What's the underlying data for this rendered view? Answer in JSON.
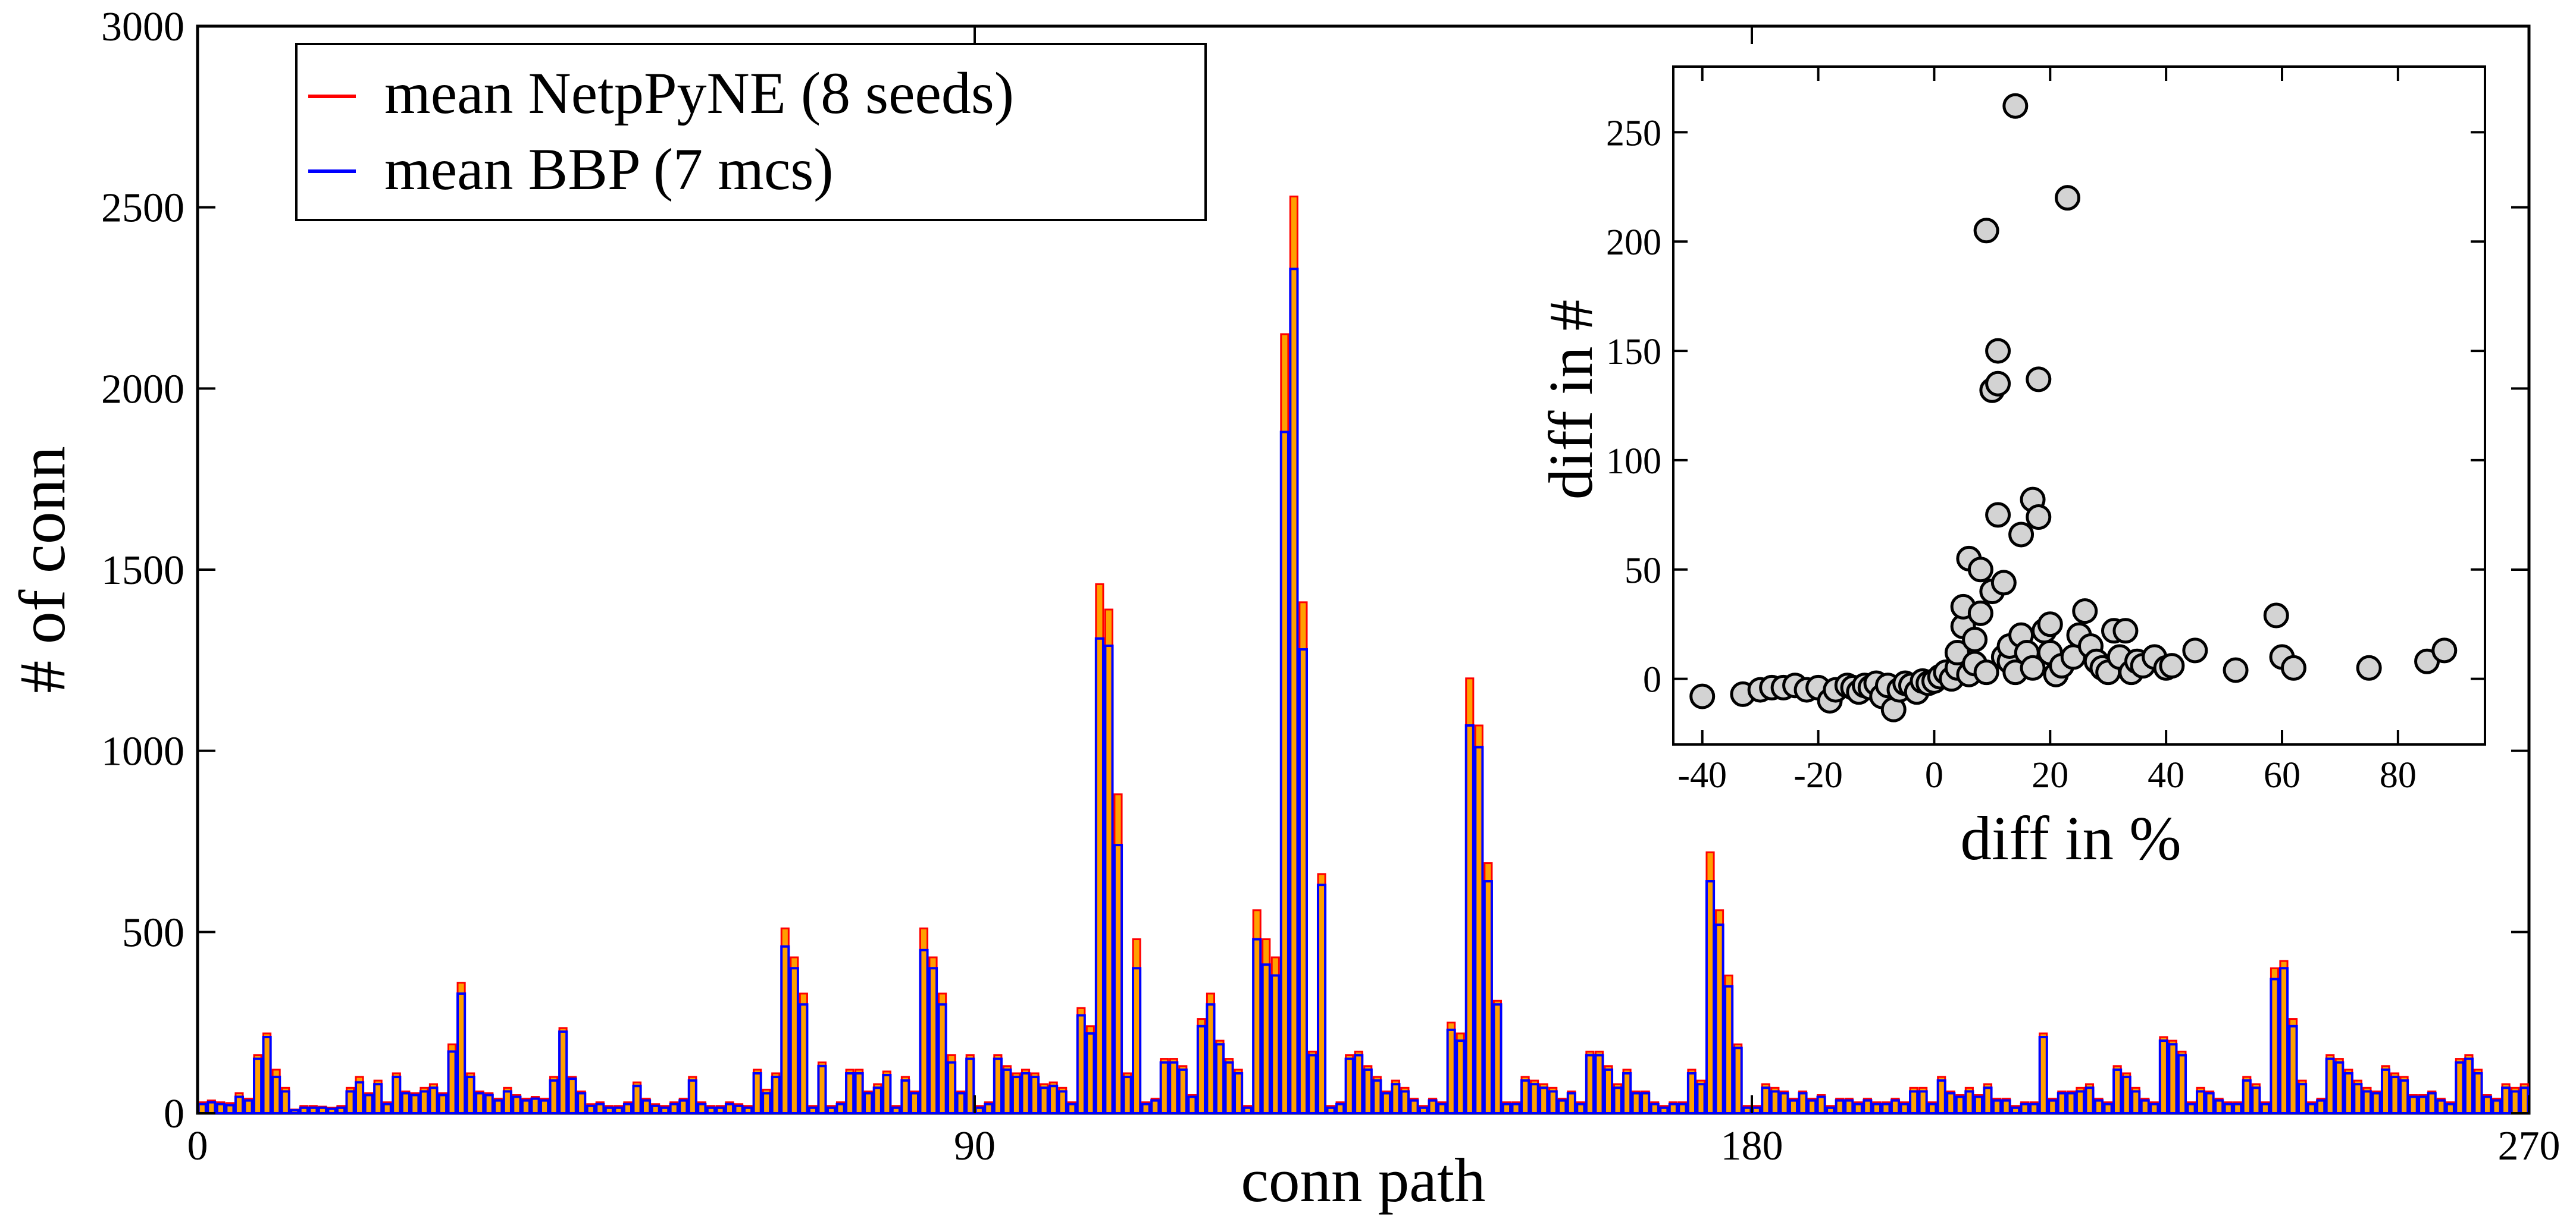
{
  "chart_data": [
    {
      "type": "bar",
      "xlabel": "conn path",
      "ylabel": "# of conn",
      "xlim": [
        0,
        270
      ],
      "ylim": [
        0,
        3000
      ],
      "x_ticks": [
        0,
        90,
        180,
        270
      ],
      "y_ticks": [
        0,
        500,
        1000,
        1500,
        2000,
        2500,
        3000
      ],
      "legend": {
        "placement": "top-left"
      },
      "grid": false,
      "series": [
        {
          "name": "mean NetpPyNE (8 seeds)",
          "color": "#ff0000",
          "fill": "#ffa000",
          "values": [
            30,
            35,
            30,
            28,
            55,
            40,
            160,
            220,
            120,
            70,
            10,
            20,
            20,
            18,
            15,
            20,
            70,
            100,
            55,
            90,
            30,
            110,
            60,
            55,
            70,
            80,
            55,
            190,
            360,
            110,
            60,
            55,
            40,
            70,
            50,
            40,
            45,
            40,
            100,
            235,
            100,
            60,
            25,
            30,
            20,
            20,
            30,
            85,
            40,
            25,
            20,
            30,
            40,
            100,
            30,
            20,
            20,
            30,
            25,
            20,
            120,
            65,
            110,
            510,
            430,
            330,
            20,
            140,
            20,
            30,
            120,
            120,
            60,
            80,
            115,
            20,
            100,
            60,
            510,
            430,
            330,
            160,
            60,
            160,
            20,
            30,
            160,
            130,
            110,
            120,
            110,
            80,
            85,
            70,
            30,
            290,
            240,
            1460,
            1390,
            880,
            110,
            480,
            30,
            40,
            150,
            150,
            130,
            50,
            260,
            330,
            200,
            150,
            120,
            20,
            560,
            480,
            430,
            2150,
            2530,
            1410,
            170,
            660,
            20,
            30,
            160,
            170,
            130,
            100,
            60,
            90,
            70,
            40,
            20,
            40,
            30,
            250,
            220,
            1200,
            1070,
            690,
            310,
            30,
            30,
            100,
            90,
            80,
            70,
            40,
            60,
            30,
            170,
            170,
            130,
            80,
            120,
            60,
            60,
            30,
            20,
            30,
            30,
            120,
            90,
            720,
            560,
            380,
            190,
            20,
            20,
            80,
            70,
            60,
            40,
            60,
            40,
            50,
            20,
            40,
            40,
            30,
            40,
            30,
            30,
            40,
            30,
            70,
            70,
            30,
            100,
            60,
            50,
            70,
            50,
            80,
            40,
            40,
            20,
            30,
            30,
            220,
            40,
            60,
            60,
            70,
            80,
            40,
            30,
            130,
            110,
            70,
            40,
            30,
            210,
            200,
            170,
            30,
            70,
            60,
            40,
            30,
            30,
            100,
            80,
            30,
            400,
            420,
            260,
            90,
            30,
            40,
            160,
            150,
            120,
            90,
            70,
            60,
            130,
            110,
            100,
            50,
            50,
            60,
            40,
            30,
            150,
            160,
            120,
            50,
            40,
            80,
            70,
            80
          ],
          "values_lower": [
            25,
            30,
            25,
            22,
            45,
            35,
            150,
            210,
            100,
            60,
            8,
            15,
            15,
            15,
            12,
            15,
            60,
            85,
            50,
            80,
            25,
            100,
            55,
            50,
            60,
            70,
            50,
            170,
            330,
            100,
            55,
            50,
            35,
            60,
            45,
            35,
            40,
            35,
            90,
            225,
            95,
            55,
            20,
            25,
            15,
            15,
            25,
            75,
            35,
            20,
            15,
            25,
            35,
            90,
            25,
            15,
            15,
            25,
            20,
            15,
            110,
            55,
            100,
            460,
            400,
            300,
            15,
            130,
            15,
            25,
            110,
            110,
            55,
            70,
            105,
            15,
            90,
            55,
            450,
            400,
            300,
            140,
            55,
            150,
            15,
            25,
            150,
            120,
            100,
            110,
            100,
            70,
            75,
            60,
            25,
            270,
            220,
            1310,
            1290,
            740,
            100,
            400,
            25,
            35,
            140,
            140,
            120,
            45,
            240,
            300,
            190,
            140,
            110,
            15,
            480,
            410,
            380,
            1880,
            2330,
            1280,
            160,
            630,
            15,
            25,
            150,
            160,
            120,
            90,
            55,
            80,
            60,
            35,
            15,
            35,
            25,
            230,
            200,
            1070,
            1010,
            640,
            300,
            25,
            25,
            90,
            80,
            70,
            60,
            35,
            55,
            25,
            160,
            160,
            120,
            70,
            110,
            55,
            55,
            25,
            15,
            25,
            25,
            110,
            80,
            640,
            520,
            350,
            180,
            15,
            15,
            70,
            60,
            55,
            35,
            55,
            35,
            45,
            15,
            35,
            35,
            25,
            35,
            25,
            25,
            35,
            25,
            60,
            60,
            25,
            90,
            55,
            45,
            60,
            45,
            70,
            35,
            35,
            15,
            25,
            25,
            210,
            35,
            55,
            55,
            60,
            70,
            35,
            25,
            120,
            100,
            60,
            35,
            25,
            200,
            190,
            160,
            25,
            60,
            55,
            35,
            25,
            25,
            90,
            70,
            25,
            370,
            400,
            240,
            80,
            25,
            35,
            150,
            140,
            110,
            80,
            60,
            55,
            120,
            100,
            90,
            45,
            45,
            55,
            35,
            25,
            140,
            150,
            110,
            45,
            35,
            70,
            60,
            70
          ]
        },
        {
          "name": "mean BBP (7 mcs)",
          "color": "#0000ff"
        }
      ]
    },
    {
      "type": "scatter",
      "xlabel": "diff in %",
      "ylabel": "diff in #",
      "xlim": [
        -45,
        95
      ],
      "ylim": [
        -30,
        280
      ],
      "x_ticks": [
        -40,
        -20,
        0,
        20,
        40,
        60,
        80
      ],
      "y_ticks": [
        0,
        50,
        100,
        150,
        200,
        250
      ],
      "grid": false,
      "series": [
        {
          "name": "",
          "color": "#d3d3d3",
          "points": [
            [
              -40,
              -8
            ],
            [
              -33,
              -7
            ],
            [
              -30,
              -5
            ],
            [
              -28,
              -4
            ],
            [
              -26,
              -4
            ],
            [
              -24,
              -3
            ],
            [
              -22,
              -5
            ],
            [
              -20,
              -4
            ],
            [
              -18,
              -10
            ],
            [
              -17,
              -5
            ],
            [
              -15,
              -3
            ],
            [
              -14,
              -4
            ],
            [
              -13,
              -6
            ],
            [
              -12,
              -3
            ],
            [
              -11,
              -4
            ],
            [
              -10,
              -2
            ],
            [
              -9,
              -8
            ],
            [
              -8,
              -3
            ],
            [
              -7,
              -14
            ],
            [
              -6,
              -5
            ],
            [
              -5,
              -2
            ],
            [
              -4,
              -3
            ],
            [
              -3,
              -6
            ],
            [
              -2,
              -1
            ],
            [
              -1,
              -2
            ],
            [
              0,
              -1
            ],
            [
              1,
              1
            ],
            [
              2,
              3
            ],
            [
              3,
              0
            ],
            [
              4,
              5
            ],
            [
              4,
              12
            ],
            [
              5,
              24
            ],
            [
              5,
              33
            ],
            [
              6,
              55
            ],
            [
              6,
              2
            ],
            [
              7,
              7
            ],
            [
              7,
              18
            ],
            [
              8,
              30
            ],
            [
              8,
              50
            ],
            [
              9,
              3
            ],
            [
              9,
              205
            ],
            [
              10,
              40
            ],
            [
              10,
              132
            ],
            [
              11,
              135
            ],
            [
              11,
              150
            ],
            [
              11,
              75
            ],
            [
              12,
              44
            ],
            [
              12,
              10
            ],
            [
              13,
              8
            ],
            [
              13,
              15
            ],
            [
              14,
              262
            ],
            [
              14,
              3
            ],
            [
              15,
              66
            ],
            [
              15,
              20
            ],
            [
              16,
              12
            ],
            [
              17,
              82
            ],
            [
              17,
              5
            ],
            [
              18,
              74
            ],
            [
              18,
              137
            ],
            [
              19,
              22
            ],
            [
              20,
              12
            ],
            [
              20,
              25
            ],
            [
              21,
              2
            ],
            [
              22,
              6
            ],
            [
              23,
              220
            ],
            [
              24,
              10
            ],
            [
              25,
              20
            ],
            [
              26,
              31
            ],
            [
              27,
              15
            ],
            [
              28,
              8
            ],
            [
              29,
              5
            ],
            [
              30,
              3
            ],
            [
              31,
              22
            ],
            [
              32,
              10
            ],
            [
              33,
              22
            ],
            [
              34,
              3
            ],
            [
              35,
              8
            ],
            [
              36,
              6
            ],
            [
              38,
              10
            ],
            [
              40,
              5
            ],
            [
              41,
              6
            ],
            [
              45,
              13
            ],
            [
              52,
              4
            ],
            [
              59,
              29
            ],
            [
              60,
              10
            ],
            [
              62,
              5
            ],
            [
              75,
              5
            ],
            [
              85,
              8
            ],
            [
              88,
              13
            ]
          ]
        }
      ]
    }
  ]
}
